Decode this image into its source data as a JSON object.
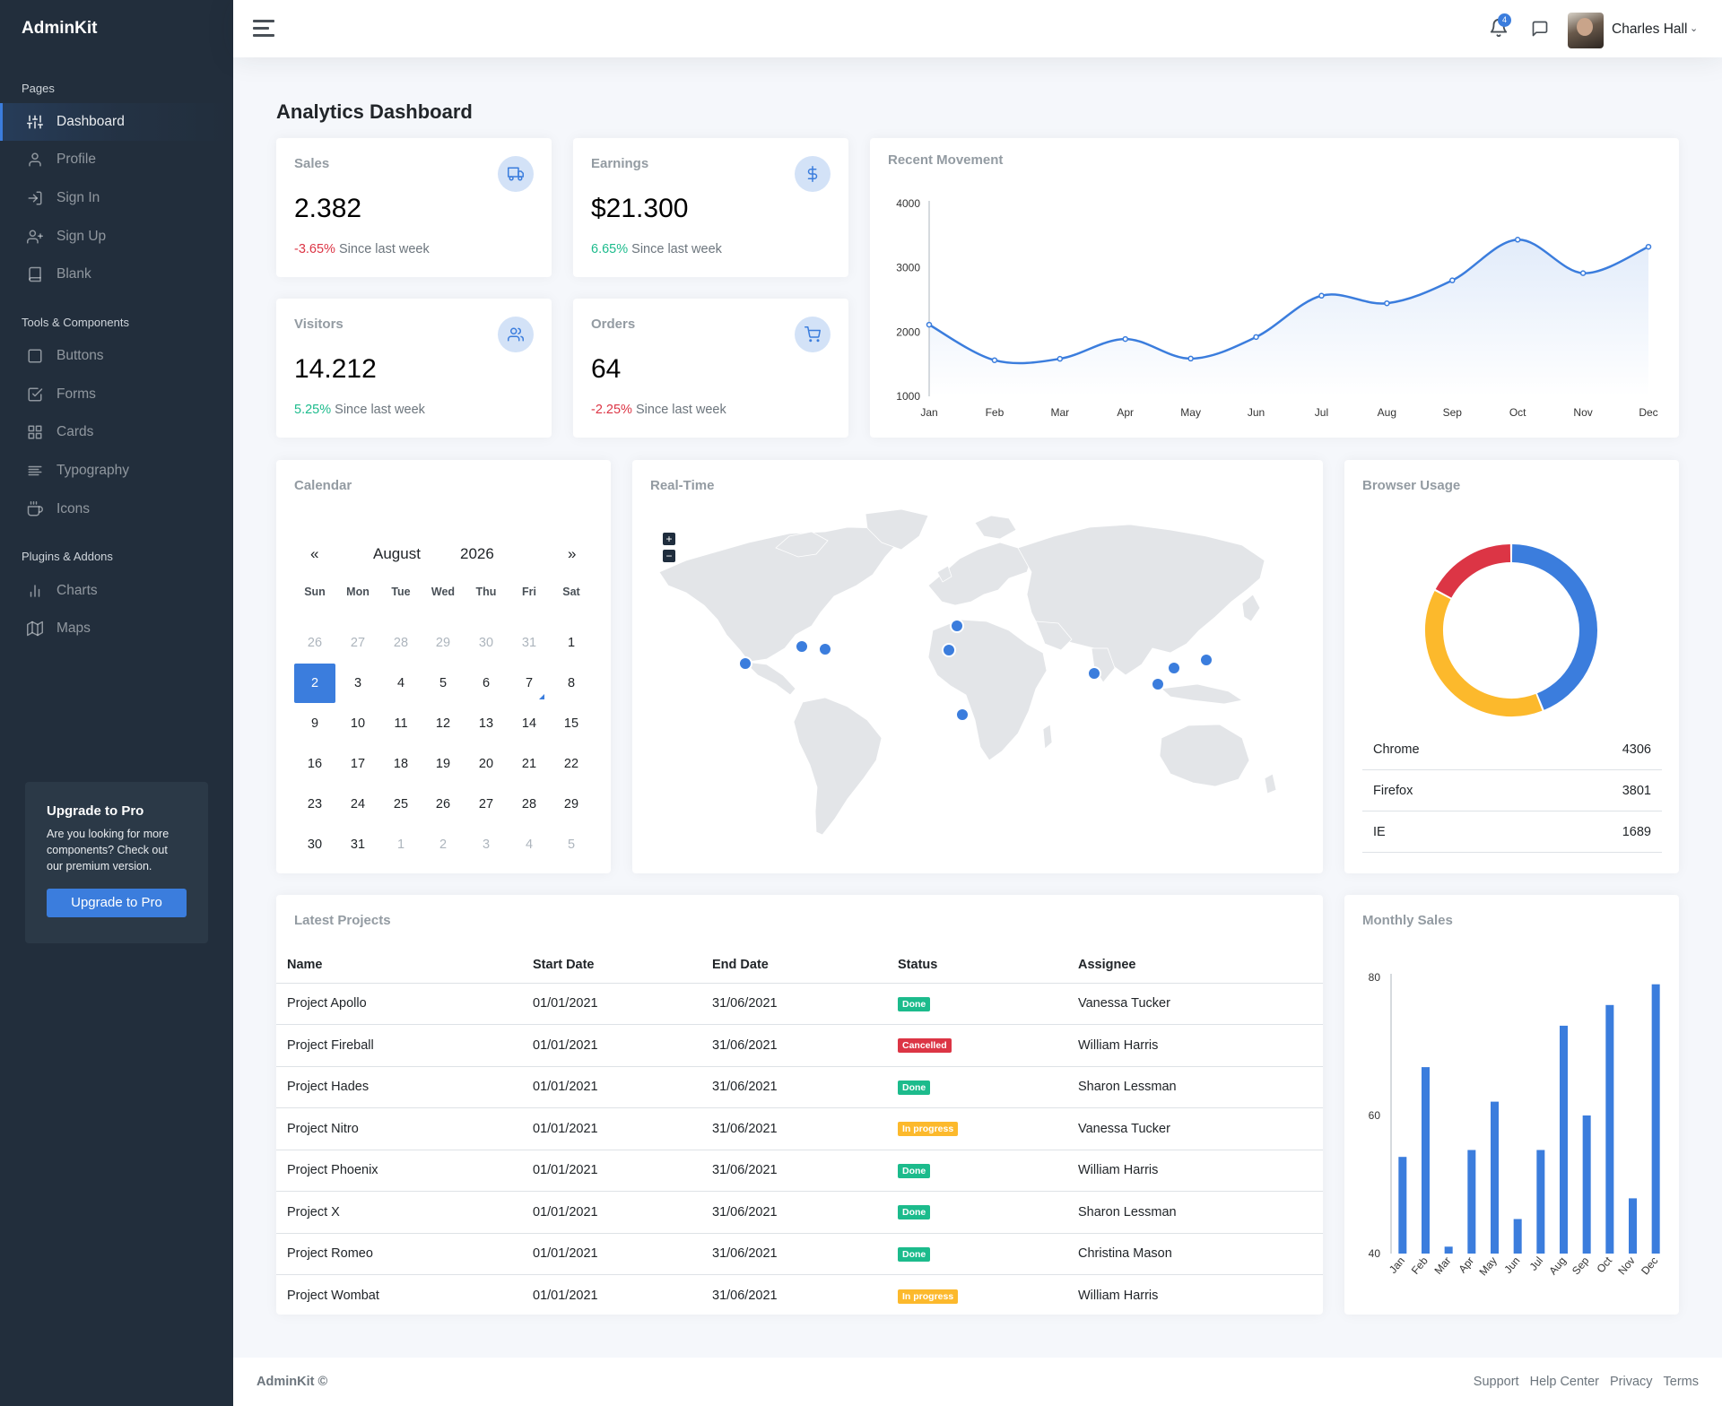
{
  "app": {
    "brand": "AdminKit"
  },
  "sidebar": {
    "headers": [
      "Pages",
      "Tools & Components",
      "Plugins & Addons"
    ],
    "items": [
      {
        "label": "Dashboard",
        "icon": "sliders-icon",
        "active": true
      },
      {
        "label": "Profile",
        "icon": "user-icon"
      },
      {
        "label": "Sign In",
        "icon": "log-in-icon"
      },
      {
        "label": "Sign Up",
        "icon": "user-plus-icon"
      },
      {
        "label": "Blank",
        "icon": "book-icon"
      },
      {
        "label": "Buttons",
        "icon": "square-icon"
      },
      {
        "label": "Forms",
        "icon": "check-square-icon"
      },
      {
        "label": "Cards",
        "icon": "grid-icon"
      },
      {
        "label": "Typography",
        "icon": "align-left-icon"
      },
      {
        "label": "Icons",
        "icon": "coffee-icon"
      },
      {
        "label": "Charts",
        "icon": "bar-chart-icon"
      },
      {
        "label": "Maps",
        "icon": "map-icon"
      }
    ],
    "cta": {
      "title": "Upgrade to Pro",
      "text": "Are you looking for more components? Check out our premium version.",
      "button": "Upgrade to Pro"
    }
  },
  "topbar": {
    "notification_count": "4",
    "user_name": "Charles Hall"
  },
  "page": {
    "title_bold": "Analytics",
    "title_rest": " Dashboard"
  },
  "stats": [
    {
      "title": "Sales",
      "value": "2.382",
      "change": "-3.65%",
      "trend": "neg",
      "since": " Since last week",
      "icon": "truck-icon"
    },
    {
      "title": "Earnings",
      "value": "$21.300",
      "change": "6.65%",
      "trend": "pos",
      "since": " Since last week",
      "icon": "dollar-icon"
    },
    {
      "title": "Visitors",
      "value": "14.212",
      "change": "5.25%",
      "trend": "pos",
      "since": " Since last week",
      "icon": "users-icon"
    },
    {
      "title": "Orders",
      "value": "64",
      "change": "-2.25%",
      "trend": "neg",
      "since": " Since last week",
      "icon": "shopping-cart-icon"
    }
  ],
  "cards": {
    "recent_movement": "Recent Movement",
    "calendar": "Calendar",
    "realtime": "Real-Time",
    "browser_usage": "Browser Usage",
    "latest_projects": "Latest Projects",
    "monthly_sales": "Monthly Sales"
  },
  "calendar": {
    "prev": "«",
    "next": "»",
    "month": "August",
    "year": "2026",
    "weekdays": [
      "Sun",
      "Mon",
      "Tue",
      "Wed",
      "Thu",
      "Fri",
      "Sat"
    ],
    "weeks": [
      [
        "26",
        "27",
        "28",
        "29",
        "30",
        "31",
        "1"
      ],
      [
        "2",
        "3",
        "4",
        "5",
        "6",
        "7",
        "8"
      ],
      [
        "9",
        "10",
        "11",
        "12",
        "13",
        "14",
        "15"
      ],
      [
        "16",
        "17",
        "18",
        "19",
        "20",
        "21",
        "22"
      ],
      [
        "23",
        "24",
        "25",
        "26",
        "27",
        "28",
        "29"
      ],
      [
        "30",
        "31",
        "1",
        "2",
        "3",
        "4",
        "5"
      ]
    ],
    "selected": "2"
  },
  "map": {
    "zoom_in": "+",
    "zoom_out": "−"
  },
  "browsers": [
    {
      "name": "Chrome",
      "value": "4306"
    },
    {
      "name": "Firefox",
      "value": "3801"
    },
    {
      "name": "IE",
      "value": "1689"
    }
  ],
  "projects": {
    "columns": [
      "Name",
      "Start Date",
      "End Date",
      "Status",
      "Assignee"
    ],
    "rows": [
      [
        "Project Apollo",
        "01/01/2021",
        "31/06/2021",
        "Done",
        "Vanessa Tucker"
      ],
      [
        "Project Fireball",
        "01/01/2021",
        "31/06/2021",
        "Cancelled",
        "William Harris"
      ],
      [
        "Project Hades",
        "01/01/2021",
        "31/06/2021",
        "Done",
        "Sharon Lessman"
      ],
      [
        "Project Nitro",
        "01/01/2021",
        "31/06/2021",
        "In progress",
        "Vanessa Tucker"
      ],
      [
        "Project Phoenix",
        "01/01/2021",
        "31/06/2021",
        "Done",
        "William Harris"
      ],
      [
        "Project X",
        "01/01/2021",
        "31/06/2021",
        "Done",
        "Sharon Lessman"
      ],
      [
        "Project Romeo",
        "01/01/2021",
        "31/06/2021",
        "Done",
        "Christina Mason"
      ],
      [
        "Project Wombat",
        "01/01/2021",
        "31/06/2021",
        "In progress",
        "William Harris"
      ]
    ]
  },
  "status_colors": {
    "Done": "#1cbb8c",
    "Cancelled": "#dc3545",
    "In progress": "#fcb92c"
  },
  "footer": {
    "brand": "AdminKit ©",
    "links": [
      "Support",
      "Help Center",
      "Privacy",
      "Terms"
    ]
  },
  "chart_data": [
    {
      "type": "area",
      "title": "Recent Movement",
      "categories": [
        "Jan",
        "Feb",
        "Mar",
        "Apr",
        "May",
        "Jun",
        "Jul",
        "Aug",
        "Sep",
        "Oct",
        "Nov",
        "Dec"
      ],
      "values": [
        2115,
        1562,
        1584,
        1892,
        1587,
        1923,
        2566,
        2448,
        2805,
        3438,
        2917,
        3327
      ],
      "ylim": [
        1000,
        4000
      ],
      "yticks": [
        1000,
        2000,
        3000,
        4000
      ],
      "color": "#3b7ddd"
    },
    {
      "type": "pie",
      "title": "Browser Usage",
      "labels": [
        "Chrome",
        "Firefox",
        "IE"
      ],
      "values": [
        4306,
        3801,
        1689
      ],
      "colors": [
        "#3b7ddd",
        "#fcb92c",
        "#dc3545"
      ]
    },
    {
      "type": "bar",
      "title": "Monthly Sales",
      "categories": [
        "Jan",
        "Feb",
        "Mar",
        "Apr",
        "May",
        "Jun",
        "Jul",
        "Aug",
        "Sep",
        "Oct",
        "Nov",
        "Dec"
      ],
      "values": [
        54,
        67,
        41,
        55,
        62,
        45,
        55,
        73,
        60,
        76,
        48,
        79
      ],
      "ylim": [
        40,
        80
      ],
      "yticks": [
        40,
        60,
        80
      ],
      "color": "#3b7ddd"
    }
  ]
}
